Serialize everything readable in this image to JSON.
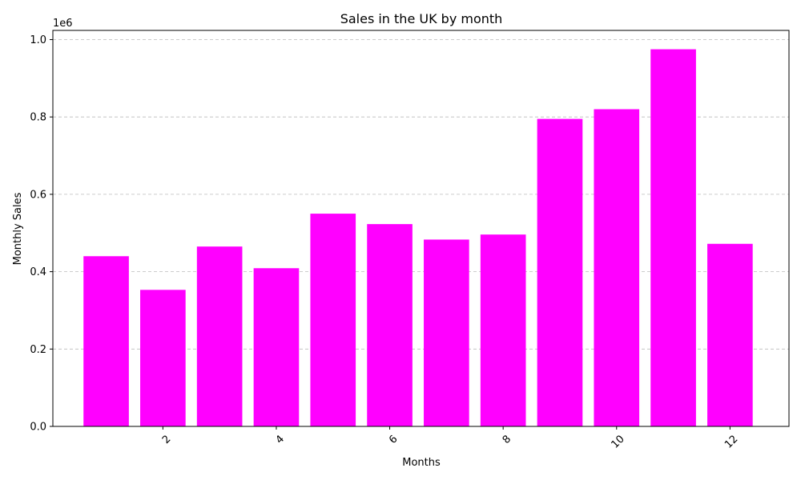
{
  "chart_data": {
    "type": "bar",
    "title": "Sales in the UK by month",
    "xlabel": "Months",
    "ylabel": "Monthly Sales",
    "y_offset_label": "1e6",
    "x": [
      1,
      2,
      3,
      4,
      5,
      6,
      7,
      8,
      9,
      10,
      11,
      12
    ],
    "values": [
      440000,
      353000,
      465000,
      409000,
      550000,
      523000,
      483000,
      496000,
      795000,
      820000,
      975000,
      472000
    ],
    "xticks": [
      2,
      4,
      6,
      8,
      10,
      12
    ],
    "xtick_labels": [
      "2",
      "4",
      "6",
      "8",
      "10",
      "12"
    ],
    "xtick_rotation": 45,
    "yticks": [
      0,
      200000,
      400000,
      600000,
      800000,
      1000000
    ],
    "ytick_labels": [
      "0.0",
      "0.2",
      "0.4",
      "0.6",
      "0.8",
      "1.0"
    ],
    "xlim": [
      0.06,
      13.04
    ],
    "ylim": [
      0,
      1023750
    ],
    "grid": "y, dashed",
    "bar_color": "#ff00ff"
  }
}
